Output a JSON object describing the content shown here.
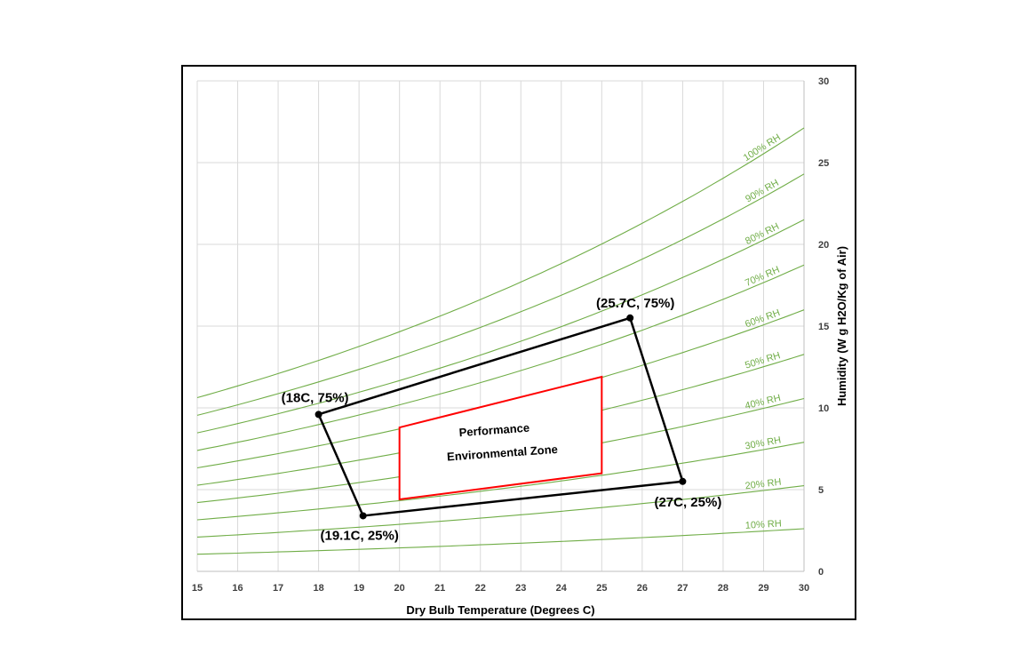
{
  "chart_data": {
    "type": "line",
    "title": "",
    "xlabel": "Dry Bulb Temperature  (Degrees C)",
    "ylabel": "Humidity (W g H2O/Kg of Air)",
    "xlim": [
      15,
      30
    ],
    "ylim": [
      0,
      30
    ],
    "x_ticks": [
      15,
      16,
      17,
      18,
      19,
      20,
      21,
      22,
      23,
      24,
      25,
      26,
      27,
      28,
      29,
      30
    ],
    "y_ticks": [
      0,
      5,
      10,
      15,
      20,
      25,
      30
    ],
    "grid": true,
    "y_axis_side": "right",
    "rh_curve_color": "#70ad47",
    "series": [
      {
        "name": "10% RH",
        "rh": 10,
        "x": [
          15,
          30
        ],
        "y": [
          1.06,
          2.68
        ]
      },
      {
        "name": "20% RH",
        "rh": 20,
        "x": [
          15,
          30
        ],
        "y": [
          2.12,
          5.38
        ]
      },
      {
        "name": "30% RH",
        "rh": 30,
        "x": [
          15,
          30
        ],
        "y": [
          3.18,
          8.1
        ]
      },
      {
        "name": "40% RH",
        "rh": 40,
        "x": [
          15,
          30
        ],
        "y": [
          4.25,
          10.84
        ]
      },
      {
        "name": "50% RH",
        "rh": 50,
        "x": [
          15,
          30
        ],
        "y": [
          5.32,
          13.61
        ]
      },
      {
        "name": "60% RH",
        "rh": 60,
        "x": [
          15,
          30
        ],
        "y": [
          6.39,
          16.4
        ]
      },
      {
        "name": "70% RH",
        "rh": 70,
        "x": [
          15,
          30
        ],
        "y": [
          7.46,
          19.22
        ]
      },
      {
        "name": "80% RH",
        "rh": 80,
        "x": [
          15,
          30
        ],
        "y": [
          8.54,
          22.07
        ]
      },
      {
        "name": "90% RH",
        "rh": 90,
        "x": [
          15,
          30
        ],
        "y": [
          9.62,
          24.94
        ]
      },
      {
        "name": "100% RH",
        "rh": 100,
        "x": [
          15,
          30
        ],
        "y": [
          10.7,
          27.84
        ]
      }
    ],
    "envelope": {
      "color": "#000000",
      "points": [
        {
          "label": "(18C, 75%)",
          "x": 18,
          "y": 9.6
        },
        {
          "label": "(25.7C, 75%)",
          "x": 25.7,
          "y": 15.5
        },
        {
          "label": "(27C, 25%)",
          "x": 27,
          "y": 5.5
        },
        {
          "label": "(19.1C, 25%)",
          "x": 19.1,
          "y": 3.4
        }
      ]
    },
    "zone": {
      "color": "#ff0000",
      "label_line1": "Performance",
      "label_line2": "Environmental  Zone",
      "points": [
        {
          "x": 20,
          "y": 8.8
        },
        {
          "x": 25,
          "y": 11.9
        },
        {
          "x": 25,
          "y": 6.0
        },
        {
          "x": 20,
          "y": 4.4
        }
      ]
    }
  }
}
